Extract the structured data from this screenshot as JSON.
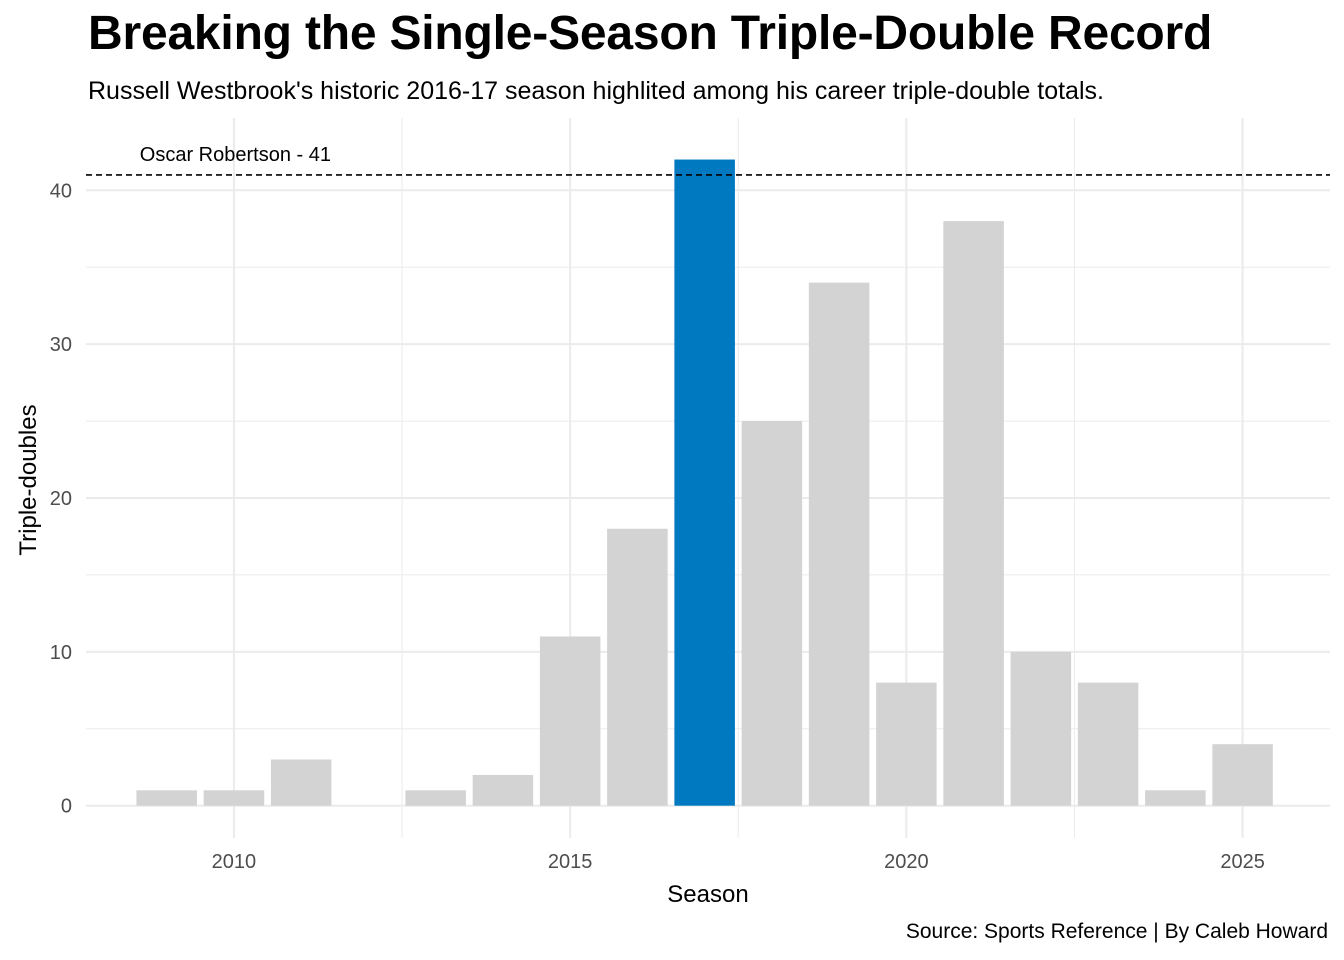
{
  "title": "Breaking the Single-Season Triple-Double Record",
  "subtitle": "Russell Westbrook's historic 2016-17 season highlited among his career triple-double totals.",
  "caption": "Source: Sports Reference | By Caleb Howard",
  "colors": {
    "highlight": "#0079C1",
    "default_bar": "#D3D3D3",
    "grid": "#EBEBEB",
    "reference_line": "#000000"
  },
  "chart_data": {
    "type": "bar",
    "xlabel": "Season",
    "ylabel": "Triple-doubles",
    "x": [
      2009,
      2010,
      2011,
      2013,
      2014,
      2015,
      2016,
      2017,
      2018,
      2019,
      2020,
      2021,
      2022,
      2023,
      2024,
      2025
    ],
    "values": [
      1,
      1,
      3,
      1,
      2,
      11,
      18,
      42,
      25,
      34,
      8,
      38,
      10,
      8,
      1,
      4
    ],
    "highlight_x": 2017,
    "xlim": [
      2007.8,
      2026.3
    ],
    "ylim": [
      -2.1,
      44.7
    ],
    "x_ticks": [
      2010,
      2015,
      2020,
      2025
    ],
    "y_ticks": [
      0,
      10,
      20,
      30,
      40
    ],
    "grid": true,
    "reference_line": {
      "value": 41,
      "label": "Oscar Robertson - 41",
      "style": "dashed"
    }
  }
}
